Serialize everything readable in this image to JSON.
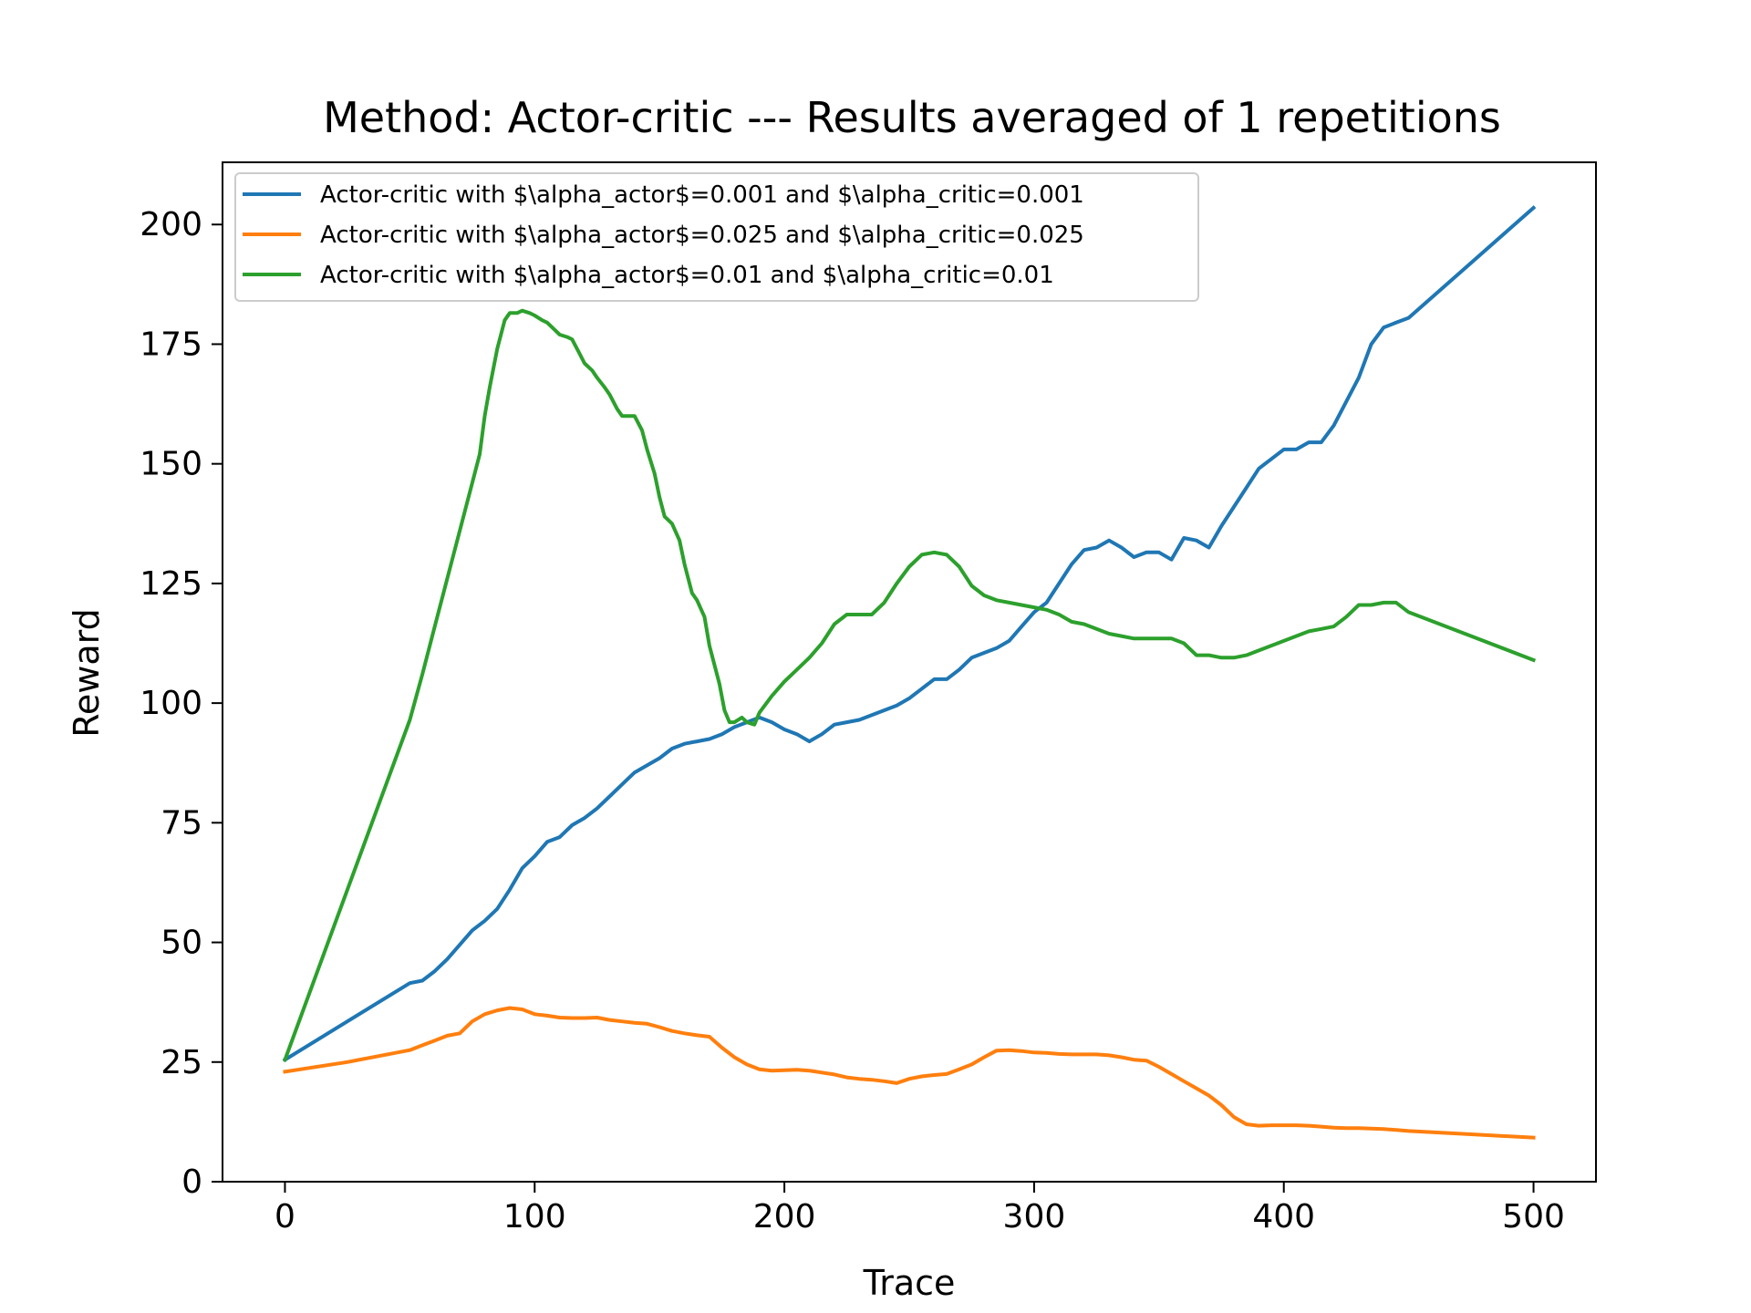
{
  "chart_data": {
    "type": "line",
    "title": "Method: Actor-critic --- Results averaged of 1 repetitions",
    "xlabel": "Trace",
    "ylabel": "Reward",
    "xlim": [
      -25,
      525
    ],
    "ylim": [
      0,
      213
    ],
    "xticks": [
      0,
      100,
      200,
      300,
      400,
      500
    ],
    "yticks": [
      0,
      25,
      50,
      75,
      100,
      125,
      150,
      175,
      200
    ],
    "grid": false,
    "legend_position": "upper-left",
    "series": [
      {
        "name": "Actor-critic with $\\alpha_actor$=0.001 and $\\alpha_critic=0.001",
        "color": "#1f77b4",
        "x": [
          0,
          25,
          50,
          55,
          60,
          65,
          70,
          75,
          80,
          85,
          90,
          95,
          100,
          105,
          110,
          115,
          120,
          125,
          130,
          135,
          140,
          145,
          150,
          155,
          160,
          165,
          170,
          175,
          180,
          185,
          190,
          195,
          200,
          205,
          210,
          215,
          220,
          225,
          230,
          235,
          240,
          245,
          250,
          255,
          260,
          265,
          270,
          275,
          280,
          285,
          290,
          295,
          300,
          305,
          310,
          315,
          320,
          325,
          330,
          335,
          340,
          345,
          350,
          355,
          360,
          365,
          370,
          375,
          380,
          385,
          390,
          395,
          400,
          405,
          410,
          415,
          420,
          425,
          430,
          435,
          440,
          445,
          450,
          475,
          500
        ],
        "y": [
          25.5,
          33.5,
          41.5,
          42,
          44,
          46.5,
          49.5,
          52.5,
          54.5,
          57,
          61,
          65.5,
          68,
          71,
          72,
          74.5,
          76,
          78,
          80.5,
          83,
          85.5,
          87,
          88.5,
          90.5,
          91.5,
          92,
          92.5,
          93.5,
          95,
          96,
          97,
          96,
          94.5,
          93.5,
          92,
          93.5,
          95.5,
          96,
          96.5,
          97.5,
          98.5,
          99.5,
          101,
          103,
          105,
          105,
          107,
          109.5,
          110.5,
          111.5,
          113,
          116,
          119,
          121,
          125,
          129,
          132,
          132.5,
          134,
          132.5,
          130.5,
          131.5,
          131.5,
          130,
          134.5,
          134,
          132.5,
          137,
          141,
          145,
          149,
          151,
          153,
          153,
          154.5,
          154.5,
          158,
          163,
          168,
          175,
          178.5,
          179.5,
          180.5,
          192,
          203.5
        ]
      },
      {
        "name": "Actor-critic with $\\alpha_actor$=0.025 and $\\alpha_critic=0.025",
        "color": "#ff7f0e",
        "x": [
          0,
          25,
          50,
          55,
          60,
          65,
          70,
          75,
          80,
          85,
          90,
          95,
          100,
          105,
          110,
          115,
          120,
          125,
          130,
          135,
          140,
          145,
          150,
          155,
          160,
          165,
          170,
          175,
          180,
          185,
          190,
          195,
          200,
          205,
          210,
          215,
          220,
          225,
          230,
          235,
          240,
          245,
          250,
          255,
          260,
          265,
          270,
          275,
          280,
          285,
          290,
          295,
          300,
          305,
          310,
          315,
          320,
          325,
          330,
          335,
          340,
          345,
          350,
          355,
          360,
          365,
          370,
          375,
          380,
          385,
          390,
          395,
          400,
          405,
          410,
          415,
          420,
          425,
          430,
          435,
          440,
          445,
          450,
          475,
          500
        ],
        "y": [
          23,
          25,
          27.5,
          28.5,
          29.5,
          30.5,
          31,
          33.5,
          35,
          35.8,
          36.3,
          36,
          35,
          34.7,
          34.3,
          34.2,
          34.2,
          34.3,
          33.8,
          33.5,
          33.2,
          33,
          32.3,
          31.5,
          31,
          30.6,
          30.3,
          28,
          26,
          24.5,
          23.5,
          23.2,
          23.3,
          23.4,
          23.2,
          22.8,
          22.4,
          21.8,
          21.5,
          21.3,
          21,
          20.6,
          21.5,
          22,
          22.3,
          22.5,
          23.5,
          24.5,
          26,
          27.4,
          27.5,
          27.3,
          27,
          26.9,
          26.7,
          26.6,
          26.6,
          26.6,
          26.4,
          26,
          25.5,
          25.3,
          24,
          22.5,
          21,
          19.5,
          18,
          16,
          13.5,
          12,
          11.7,
          11.8,
          11.8,
          11.8,
          11.7,
          11.5,
          11.3,
          11.2,
          11.2,
          11.1,
          11,
          10.8,
          10.6,
          9.9,
          9.2
        ]
      },
      {
        "name": "Actor-critic with $\\alpha_actor$=0.01 and $\\alpha_critic=0.01",
        "color": "#2ca02c",
        "x": [
          0,
          25,
          50,
          55,
          60,
          65,
          70,
          75,
          78,
          80,
          82,
          85,
          88,
          90,
          93,
          95,
          98,
          100,
          103,
          105,
          108,
          110,
          113,
          115,
          118,
          120,
          123,
          125,
          128,
          130,
          133,
          135,
          138,
          140,
          143,
          145,
          148,
          150,
          152,
          155,
          158,
          160,
          163,
          165,
          168,
          170,
          172,
          174,
          176,
          178,
          180,
          183,
          185,
          188,
          190,
          195,
          200,
          205,
          210,
          215,
          220,
          225,
          230,
          235,
          240,
          245,
          250,
          255,
          260,
          265,
          270,
          275,
          280,
          285,
          290,
          295,
          300,
          305,
          310,
          315,
          320,
          325,
          330,
          335,
          340,
          345,
          350,
          355,
          360,
          365,
          370,
          375,
          380,
          385,
          390,
          395,
          400,
          405,
          410,
          415,
          420,
          425,
          430,
          435,
          440,
          445,
          450,
          475,
          500
        ],
        "y": [
          25.5,
          61,
          96.5,
          106,
          116,
          126,
          136,
          146,
          152,
          160,
          166,
          174,
          180,
          181.5,
          181.5,
          182,
          181.5,
          181,
          180,
          179.5,
          178,
          177,
          176.5,
          176,
          173,
          171,
          169.5,
          168,
          166,
          164.5,
          161.5,
          160,
          160,
          160,
          157,
          153,
          148,
          143,
          139,
          137.5,
          134,
          129,
          123,
          121.5,
          118,
          112,
          108,
          104,
          98.5,
          96,
          96,
          97,
          96,
          95.5,
          98,
          101.5,
          104.5,
          107,
          109.5,
          112.5,
          116.5,
          118.5,
          118.5,
          118.5,
          121,
          125,
          128.5,
          131,
          131.5,
          131,
          128.5,
          124.5,
          122.5,
          121.5,
          121,
          120.5,
          120,
          119.5,
          118.5,
          117,
          116.5,
          115.5,
          114.5,
          114,
          113.5,
          113.5,
          113.5,
          113.5,
          112.5,
          110,
          110,
          109.5,
          109.5,
          110,
          111,
          112,
          113,
          114,
          115,
          115.5,
          116,
          118,
          120.5,
          120.5,
          121,
          121,
          119,
          114,
          109
        ]
      }
    ]
  }
}
